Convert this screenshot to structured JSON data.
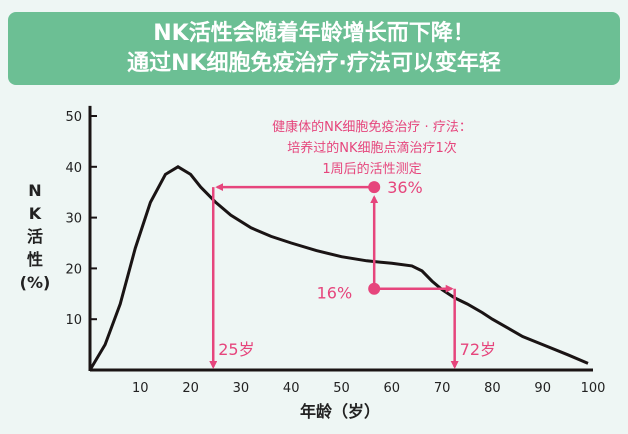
{
  "header": {
    "line1": "NK活性会随着年龄增长而下降！",
    "line2": "通过NK细胞免疫治疗·疗法可以变年轻"
  },
  "colors": {
    "accent": "#e6457c",
    "header_bg": "#6cbf94",
    "curve": "#1a1414"
  },
  "chart_data": {
    "type": "line",
    "title": "NK活性会随着年龄增长而下降！通过NK细胞免疫治疗·疗法可以变年轻",
    "xlabel": "年龄（岁）",
    "ylabel": [
      "N",
      "K",
      "活",
      "性",
      "(%)"
    ],
    "xlim": [
      0,
      100
    ],
    "ylim": [
      0,
      50
    ],
    "xticks": [
      10,
      20,
      30,
      40,
      50,
      60,
      70,
      80,
      90,
      100
    ],
    "yticks": [
      10,
      20,
      30,
      40,
      50
    ],
    "series": [
      {
        "name": "NK活性",
        "x": [
          0,
          3,
          6,
          9,
          12,
          15,
          17.5,
          20,
          22,
          25,
          28,
          32,
          36,
          40,
          45,
          50,
          55,
          60,
          64,
          66,
          68,
          70,
          72.5,
          75,
          78,
          80,
          83,
          86,
          90,
          95,
          99
        ],
        "y": [
          0,
          5,
          13,
          24,
          33,
          38.5,
          40,
          38.5,
          36,
          33,
          30.5,
          28,
          26.3,
          25,
          23.5,
          22.3,
          21.5,
          21,
          20.5,
          19.5,
          17.5,
          15.8,
          14.2,
          13,
          11.3,
          10,
          8.3,
          6.6,
          5,
          3,
          1.3
        ]
      }
    ],
    "annotations": {
      "note": [
        "健康体的NK细胞免疫治疗 · 疗法：",
        "培养过的NK细胞点滴治疗1次",
        "1周后的活性测定"
      ],
      "before_label": "16%",
      "after_label": "36%",
      "before_age_label": "72岁",
      "after_age_label": "25岁",
      "before_value": 16,
      "after_value": 36,
      "before_age": 72.5,
      "after_age": 24.5,
      "measure_age": 56.5
    }
  }
}
